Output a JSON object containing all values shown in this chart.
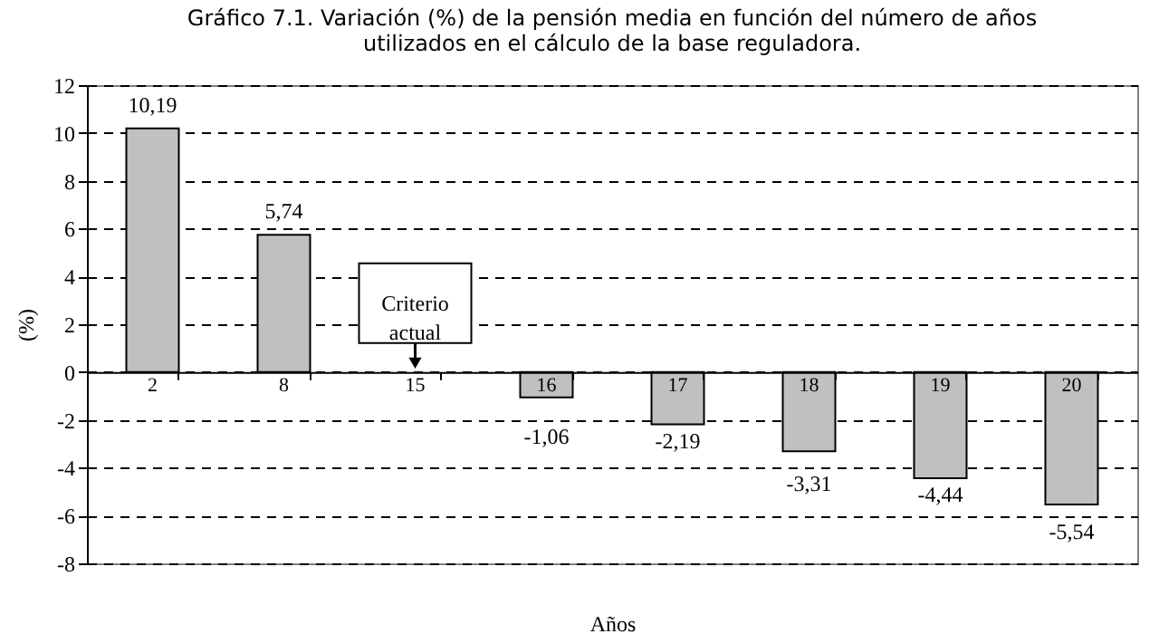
{
  "chart_data": {
    "type": "bar",
    "title": [
      "Gráfico 7.1. Variación (%) de la pensión media  en función del número de años",
      "utilizados en el cálculo de la base reguladora."
    ],
    "xlabel": "Años",
    "ylabel": "(%)",
    "categories": [
      "2",
      "8",
      "15",
      "16",
      "17",
      "18",
      "19",
      "20"
    ],
    "values": [
      10.19,
      5.74,
      null,
      -1.06,
      -2.19,
      -3.31,
      -4.44,
      -5.54
    ],
    "value_labels": [
      "10,19",
      "5,74",
      null,
      "-1,06",
      "-2,19",
      "-3,31",
      "-4,44",
      "-5,54"
    ],
    "color": "#c0c0c0",
    "ylim": [
      -8,
      12
    ],
    "yticks": [
      -8,
      -6,
      -4,
      -2,
      0,
      2,
      4,
      6,
      8,
      10,
      12
    ],
    "grid": "y",
    "annotations": [
      "Criterio actual"
    ]
  }
}
